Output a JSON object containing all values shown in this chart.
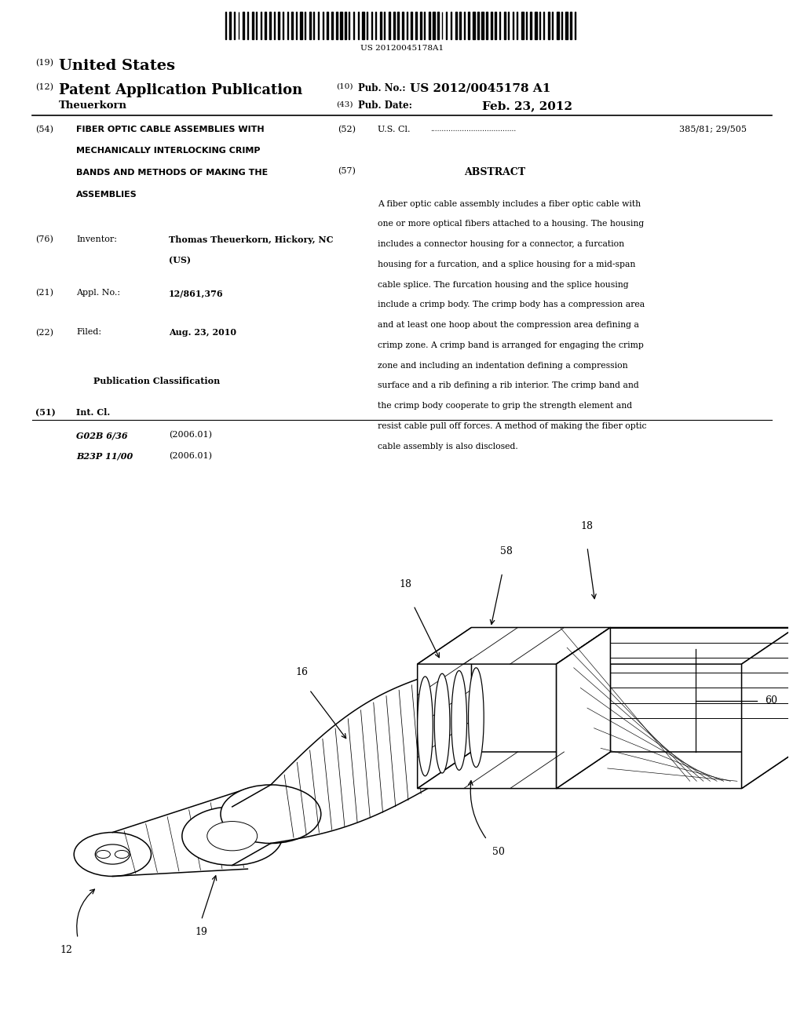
{
  "background_color": "#ffffff",
  "page_width": 10.24,
  "page_height": 13.2,
  "barcode_text": "US 20120045178A1",
  "line19_text": "United States",
  "line12_text": "Patent Application Publication",
  "line10_text": "Pub. No.:",
  "line10_value": "US 2012/0045178 A1",
  "line43_text": "Pub. Date:",
  "line43_value": "Feb. 23, 2012",
  "author": "Theuerkorn",
  "field54_title_lines": [
    "FIBER OPTIC CABLE ASSEMBLIES WITH",
    "MECHANICALLY INTERLOCKING CRIMP",
    "BANDS AND METHODS OF MAKING THE",
    "ASSEMBLIES"
  ],
  "field76_value_line1": "Thomas Theuerkorn, Hickory, NC",
  "field76_value_line2": "(US)",
  "field21_value": "12/861,376",
  "field22_value": "Aug. 23, 2010",
  "field51_class1": "G02B 6/36",
  "field51_date1": "(2006.01)",
  "field51_class2": "B23P 11/00",
  "field51_date2": "(2006.01)",
  "field52_value": "385/81; 29/505",
  "abstract_lines": [
    "A fiber optic cable assembly includes a fiber optic cable with",
    "one or more optical fibers attached to a housing. The housing",
    "includes a connector housing for a connector, a furcation",
    "housing for a furcation, and a splice housing for a mid-span",
    "cable splice. The furcation housing and the splice housing",
    "include a crimp body. The crimp body has a compression area",
    "and at least one hoop about the compression area defining a",
    "crimp zone. A crimp band is arranged for engaging the crimp",
    "zone and including an indentation defining a compression",
    "surface and a rib defining a rib interior. The crimp band and",
    "the crimp body cooperate to grip the strength element and",
    "resist cable pull off forces. A method of making the fiber optic",
    "cable assembly is also disclosed."
  ]
}
